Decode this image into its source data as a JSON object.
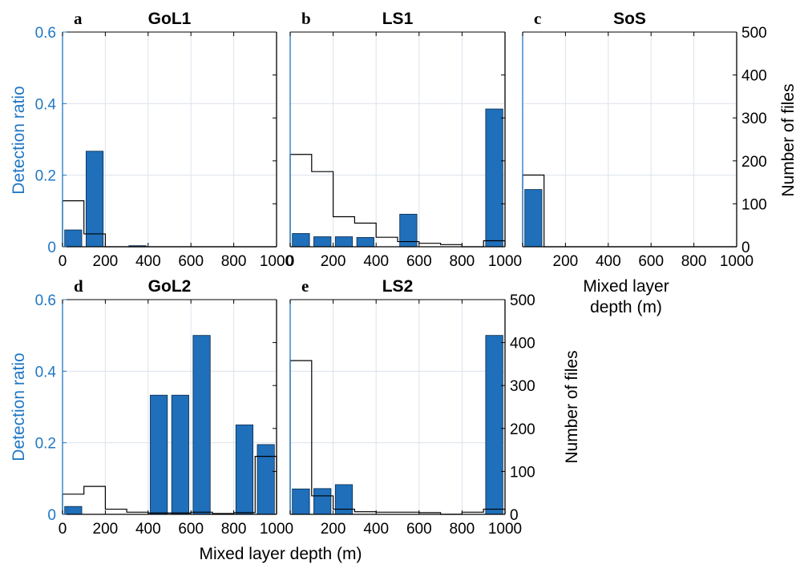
{
  "colors": {
    "bar": "#1f6fba",
    "ratio_axis": "#1f77c4",
    "files_axis": "#000000",
    "grid": "#dbe3ec"
  },
  "axis_labels": {
    "ylabel_left": "Detection ratio",
    "ylabel_right": "Number of files",
    "xlabel": "Mixed layer depth (m)",
    "xlabel_c_line1": "Mixed layer",
    "xlabel_c_line2": "depth (m)"
  },
  "chart_data": [
    {
      "panel": "a",
      "title": "GoL1",
      "type": "bar",
      "x_bins": [
        0,
        100,
        200,
        300,
        400,
        500,
        600,
        700,
        800,
        900,
        1000
      ],
      "xlim": [
        0,
        1000
      ],
      "xticks": [
        0,
        200,
        400,
        600,
        800,
        1000
      ],
      "detection_ratio": [
        0.047,
        0.267,
        0,
        0.003,
        0,
        0,
        0,
        0,
        0,
        0
      ],
      "ylim_ratio": [
        0,
        0.6
      ],
      "yticks_ratio": [
        0,
        0.2,
        0.4,
        0.6
      ],
      "number_of_files": [
        107,
        30,
        0,
        0,
        0,
        0,
        0,
        0,
        0,
        0
      ],
      "ylim_files": [
        0,
        500
      ],
      "yticks_files": [
        0,
        100,
        200,
        300,
        400,
        500
      ],
      "grid": true
    },
    {
      "panel": "b",
      "title": "LS1",
      "type": "bar",
      "x_bins": [
        0,
        100,
        200,
        300,
        400,
        500,
        600,
        700,
        800,
        900,
        1000
      ],
      "xlim": [
        0,
        1000
      ],
      "xticks": [
        0,
        200,
        400,
        600,
        800,
        1000
      ],
      "detection_ratio": [
        0.037,
        0.028,
        0.028,
        0.026,
        0,
        0.091,
        0,
        0,
        0,
        0.385
      ],
      "ylim_ratio": [
        0,
        0.6
      ],
      "yticks_ratio": [
        0,
        0.2,
        0.4,
        0.6
      ],
      "number_of_files": [
        215,
        175,
        70,
        55,
        22,
        12,
        8,
        5,
        0,
        14
      ],
      "ylim_files": [
        0,
        500
      ],
      "yticks_files": [
        0,
        100,
        200,
        300,
        400,
        500
      ],
      "grid": true
    },
    {
      "panel": "c",
      "title": "SoS",
      "type": "bar",
      "x_bins": [
        0,
        100,
        200,
        300,
        400,
        500,
        600,
        700,
        800,
        900,
        1000
      ],
      "xlim": [
        0,
        1000
      ],
      "xticks": [
        200,
        400,
        600,
        800,
        1000
      ],
      "detection_ratio": [
        0.16,
        0,
        0,
        0,
        0,
        0,
        0,
        0,
        0,
        0
      ],
      "ylim_ratio": [
        0,
        0.6
      ],
      "number_of_files": [
        167,
        0,
        0,
        0,
        0,
        0,
        0,
        0,
        0,
        0
      ],
      "ylim_files": [
        0,
        500
      ],
      "yticks_files": [
        0,
        100,
        200,
        300,
        400,
        500
      ],
      "grid": true
    },
    {
      "panel": "d",
      "title": "GoL2",
      "type": "bar",
      "x_bins": [
        0,
        100,
        200,
        300,
        400,
        500,
        600,
        700,
        800,
        900,
        1000
      ],
      "xlim": [
        0,
        1000
      ],
      "xticks": [
        0,
        200,
        400,
        600,
        800,
        1000
      ],
      "detection_ratio": [
        0.022,
        0,
        0,
        0,
        0.333,
        0.333,
        0.5,
        0,
        0.25,
        0.195
      ],
      "ylim_ratio": [
        0,
        0.6
      ],
      "yticks_ratio": [
        0,
        0.2,
        0.4,
        0.6
      ],
      "number_of_files": [
        47,
        65,
        12,
        5,
        3,
        3,
        5,
        2,
        4,
        135
      ],
      "ylim_files": [
        0,
        500
      ],
      "yticks_files": [
        0,
        100,
        200,
        300,
        400,
        500
      ],
      "grid": true
    },
    {
      "panel": "e",
      "title": "LS2",
      "type": "bar",
      "x_bins": [
        0,
        100,
        200,
        300,
        400,
        500,
        600,
        700,
        800,
        900,
        1000
      ],
      "xlim": [
        0,
        1000
      ],
      "xticks": [
        200,
        400,
        600,
        800,
        1000
      ],
      "detection_ratio": [
        0.071,
        0.072,
        0.083,
        0,
        0,
        0,
        0,
        0,
        0,
        0.5
      ],
      "ylim_ratio": [
        0,
        0.6
      ],
      "number_of_files": [
        358,
        43,
        12,
        6,
        5,
        5,
        4,
        0,
        5,
        12
      ],
      "ylim_files": [
        0,
        500
      ],
      "yticks_files": [
        0,
        100,
        200,
        300,
        400,
        500
      ],
      "grid": true
    }
  ]
}
